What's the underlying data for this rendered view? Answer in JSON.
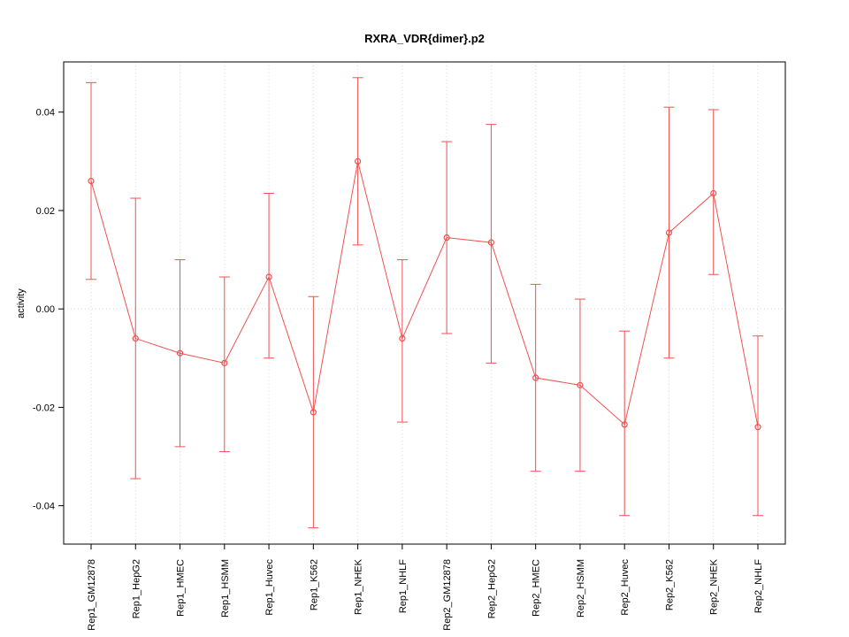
{
  "chart_data": {
    "type": "line",
    "title": "RXRA_VDR{dimer}.p2",
    "ylabel": "activity",
    "xlabel": "",
    "ylim": [
      -0.0478,
      0.0502
    ],
    "yticks": [
      {
        "v": -0.04,
        "label": "-0.04"
      },
      {
        "v": -0.02,
        "label": "-0.02"
      },
      {
        "v": 0.0,
        "label": "0.00"
      },
      {
        "v": 0.02,
        "label": "0.02"
      },
      {
        "v": 0.04,
        "label": "0.04"
      }
    ],
    "categories": [
      "Rep1_GM12878",
      "Rep1_HepG2",
      "Rep1_HMEC",
      "Rep1_HSMM",
      "Rep1_Huvec",
      "Rep1_K562",
      "Rep1_NHEK",
      "Rep1_NHLF",
      "Rep2_GM12878",
      "Rep2_HepG2",
      "Rep2_HMEC",
      "Rep2_HSMM",
      "Rep2_Huvec",
      "Rep2_K562",
      "Rep2_NHEK",
      "Rep2_NHLF"
    ],
    "series": [
      {
        "name": "activity",
        "color": "#f05050",
        "point_style": "open-circle",
        "values": [
          0.026,
          -0.006,
          -0.009,
          -0.011,
          0.0065,
          -0.021,
          0.03,
          -0.006,
          0.0145,
          0.0135,
          -0.014,
          -0.0155,
          -0.0235,
          0.0155,
          0.0235,
          -0.024
        ],
        "err_low": [
          0.006,
          -0.0345,
          -0.028,
          -0.029,
          -0.01,
          -0.0445,
          0.013,
          -0.023,
          -0.005,
          -0.011,
          -0.033,
          -0.033,
          -0.042,
          -0.01,
          0.007,
          -0.042
        ],
        "err_high": [
          0.046,
          0.0225,
          0.01,
          0.0065,
          0.0235,
          0.0025,
          0.047,
          0.01,
          0.034,
          0.0375,
          0.005,
          0.002,
          -0.0045,
          0.041,
          0.0405,
          -0.0055
        ]
      }
    ],
    "grid": {
      "vertical": true,
      "zero_line": true,
      "color": "#d9d9d9",
      "style": "dotted"
    },
    "legend": "none",
    "axis_color": "#000000"
  }
}
